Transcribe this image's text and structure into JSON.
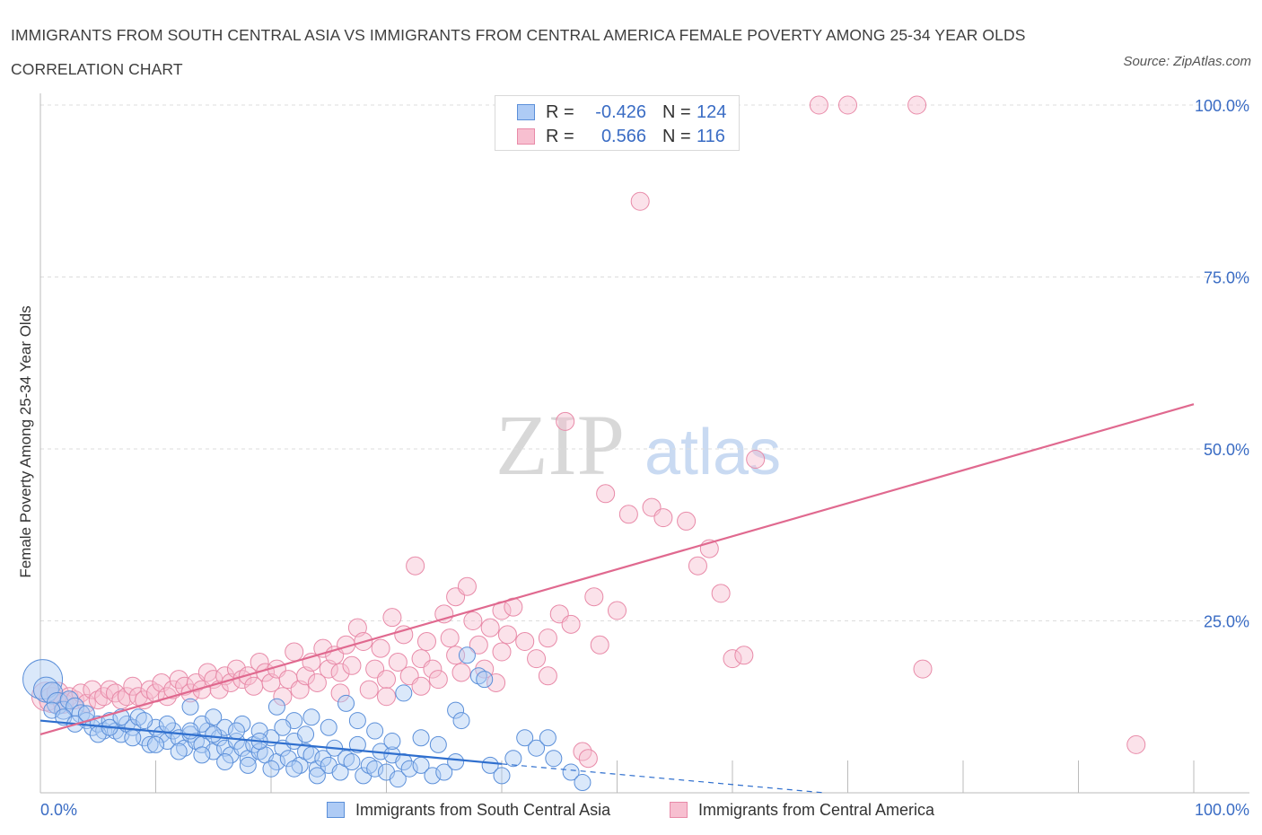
{
  "title": "IMMIGRANTS FROM SOUTH CENTRAL ASIA VS IMMIGRANTS FROM CENTRAL AMERICA FEMALE POVERTY AMONG 25-34 YEAR OLDS CORRELATION CHART",
  "source": "Source: ZipAtlas.com",
  "watermark": {
    "zip": "ZIP",
    "atlas": "atlas"
  },
  "legend": {
    "r_label": "R =",
    "n_label": "N =",
    "series1": {
      "r": "-0.426",
      "n": "124"
    },
    "series2": {
      "r": "0.566",
      "n": "116"
    }
  },
  "colors": {
    "blue_fill": "#aecbf5",
    "blue_stroke": "#5b8fd9",
    "blue_line": "#2f6fce",
    "pink_fill": "#f7bfd0",
    "pink_stroke": "#e88aa8",
    "pink_line": "#e0698f",
    "axis_label": "#3a6cc4",
    "grid": "#dddddd"
  },
  "chart_data": {
    "type": "scatter",
    "title": "IMMIGRANTS FROM SOUTH CENTRAL ASIA VS IMMIGRANTS FROM CENTRAL AMERICA FEMALE POVERTY AMONG 25-34 YEAR OLDS CORRELATION CHART",
    "xlabel": "",
    "ylabel": "Female Poverty Among 25-34 Year Olds",
    "xlim": [
      0,
      100
    ],
    "ylim": [
      0,
      100
    ],
    "x_tick_labels": [
      "0.0%",
      "100.0%"
    ],
    "y_tick_labels": [
      "25.0%",
      "50.0%",
      "75.0%",
      "100.0%"
    ],
    "y_ticks": [
      25,
      50,
      75,
      100
    ],
    "grid": true,
    "legend_position": "top-center",
    "series": [
      {
        "name": "Immigrants from South Central Asia",
        "color": "#5b8fd9",
        "r": -0.426,
        "n": 124,
        "trend": {
          "x0": 0,
          "y0": 10.5,
          "x1": 40,
          "y1": 4.2,
          "dashed_to_x": 68,
          "dashed_to_y": 0
        },
        "points": [
          [
            0.2,
            16.5,
            22
          ],
          [
            0.5,
            15.0,
            14
          ],
          [
            1.0,
            14.5,
            12
          ],
          [
            1.5,
            13.0,
            12
          ],
          [
            2.0,
            12.0,
            10
          ],
          [
            2.5,
            13.5,
            10
          ],
          [
            3.0,
            12.5,
            10
          ],
          [
            3.5,
            11.5,
            10
          ],
          [
            4.0,
            10.5,
            9
          ],
          [
            4.5,
            9.5,
            9
          ],
          [
            5.0,
            10.0,
            9
          ],
          [
            5.5,
            9.0,
            9
          ],
          [
            6.0,
            10.5,
            9
          ],
          [
            6.5,
            9.0,
            9
          ],
          [
            7.0,
            8.5,
            9
          ],
          [
            7.5,
            10.0,
            9
          ],
          [
            8.0,
            9.5,
            9
          ],
          [
            8.5,
            11.0,
            9
          ],
          [
            9.0,
            8.0,
            9
          ],
          [
            9.5,
            7.0,
            9
          ],
          [
            10.0,
            9.5,
            9
          ],
          [
            10.5,
            8.5,
            9
          ],
          [
            11.0,
            7.5,
            9
          ],
          [
            11.5,
            9.0,
            9
          ],
          [
            12.0,
            8.0,
            9
          ],
          [
            12.5,
            6.5,
            9
          ],
          [
            13.0,
            8.5,
            9
          ],
          [
            13.5,
            7.5,
            9
          ],
          [
            14.0,
            7.0,
            9
          ],
          [
            14.5,
            9.0,
            9
          ],
          [
            15.0,
            6.0,
            9
          ],
          [
            15.5,
            8.0,
            9
          ],
          [
            16.0,
            6.5,
            9
          ],
          [
            16.5,
            5.5,
            9
          ],
          [
            17.0,
            7.5,
            9
          ],
          [
            17.5,
            6.5,
            9
          ],
          [
            18.0,
            5.0,
            9
          ],
          [
            18.5,
            7.0,
            9
          ],
          [
            19.0,
            6.0,
            9
          ],
          [
            19.5,
            5.5,
            9
          ],
          [
            20.0,
            8.0,
            9
          ],
          [
            20.5,
            4.5,
            9
          ],
          [
            21.0,
            6.5,
            9
          ],
          [
            21.5,
            5.0,
            9
          ],
          [
            22.0,
            7.5,
            9
          ],
          [
            22.5,
            4.0,
            9
          ],
          [
            23.0,
            6.0,
            9
          ],
          [
            23.5,
            5.5,
            9
          ],
          [
            24.0,
            3.5,
            9
          ],
          [
            24.5,
            5.0,
            9
          ],
          [
            25.0,
            4.0,
            9
          ],
          [
            25.5,
            6.5,
            9
          ],
          [
            26.0,
            3.0,
            9
          ],
          [
            26.5,
            5.0,
            9
          ],
          [
            27.0,
            4.5,
            9
          ],
          [
            27.5,
            7.0,
            9
          ],
          [
            28.0,
            2.5,
            9
          ],
          [
            28.5,
            4.0,
            9
          ],
          [
            29.0,
            3.5,
            9
          ],
          [
            29.5,
            6.0,
            9
          ],
          [
            30.0,
            3.0,
            9
          ],
          [
            30.5,
            5.5,
            9
          ],
          [
            31.0,
            2.0,
            9
          ],
          [
            31.5,
            4.5,
            9
          ],
          [
            32.0,
            3.5,
            9
          ],
          [
            33.0,
            4.0,
            9
          ],
          [
            34.0,
            2.5,
            9
          ],
          [
            35.0,
            3.0,
            9
          ],
          [
            36.0,
            12.0,
            9
          ],
          [
            36.5,
            10.5,
            9
          ],
          [
            37.0,
            20.0,
            9
          ],
          [
            38.0,
            17.0,
            9
          ],
          [
            39.0,
            4.0,
            9
          ],
          [
            40.0,
            2.5,
            9
          ],
          [
            42.0,
            8.0,
            9
          ],
          [
            43.0,
            6.5,
            9
          ],
          [
            44.0,
            8.0,
            9
          ],
          [
            46.0,
            3.0,
            9
          ],
          [
            47.0,
            1.5,
            9
          ],
          [
            38.5,
            16.5,
            9
          ],
          [
            13.0,
            12.5,
            9
          ],
          [
            14.0,
            10.0,
            9
          ],
          [
            15.0,
            11.0,
            9
          ],
          [
            16.0,
            9.5,
            9
          ],
          [
            17.5,
            10.0,
            9
          ],
          [
            19.0,
            9.0,
            9
          ],
          [
            20.5,
            12.5,
            9
          ],
          [
            22.0,
            10.5,
            9
          ],
          [
            23.5,
            11.0,
            9
          ],
          [
            25.0,
            9.5,
            9
          ],
          [
            26.5,
            13.0,
            9
          ],
          [
            27.5,
            10.5,
            9
          ],
          [
            29.0,
            9.0,
            9
          ],
          [
            30.5,
            7.5,
            9
          ],
          [
            31.5,
            14.5,
            9
          ],
          [
            33.0,
            8.0,
            9
          ],
          [
            34.5,
            7.0,
            9
          ],
          [
            36.0,
            4.5,
            9
          ],
          [
            41.0,
            5.0,
            9
          ],
          [
            44.5,
            5.0,
            9
          ],
          [
            1.0,
            12.0,
            9
          ],
          [
            2.0,
            11.0,
            9
          ],
          [
            3.0,
            10.0,
            9
          ],
          [
            4.0,
            11.5,
            9
          ],
          [
            5.0,
            8.5,
            9
          ],
          [
            6.0,
            9.5,
            9
          ],
          [
            7.0,
            11.0,
            9
          ],
          [
            8.0,
            8.0,
            9
          ],
          [
            9.0,
            10.5,
            9
          ],
          [
            10.0,
            7.0,
            9
          ],
          [
            11.0,
            10.0,
            9
          ],
          [
            12.0,
            6.0,
            9
          ],
          [
            13.0,
            9.0,
            9
          ],
          [
            14.0,
            5.5,
            9
          ],
          [
            15.0,
            8.5,
            9
          ],
          [
            16.0,
            4.5,
            9
          ],
          [
            17.0,
            9.0,
            9
          ],
          [
            18.0,
            4.0,
            9
          ],
          [
            19.0,
            7.5,
            9
          ],
          [
            20.0,
            3.5,
            9
          ],
          [
            21.0,
            9.5,
            9
          ],
          [
            22.0,
            3.5,
            9
          ],
          [
            23.0,
            8.5,
            9
          ],
          [
            24.0,
            2.5,
            9
          ]
        ]
      },
      {
        "name": "Immigrants from Central America",
        "color": "#e88aa8",
        "r": 0.566,
        "n": 116,
        "trend": {
          "x0": 0,
          "y0": 8.5,
          "x1": 100,
          "y1": 56.5
        },
        "points": [
          [
            0.5,
            14.0,
            16
          ],
          [
            1.0,
            13.5,
            14
          ],
          [
            1.5,
            14.5,
            12
          ],
          [
            2.0,
            13.0,
            11
          ],
          [
            2.5,
            14.0,
            10
          ],
          [
            3.0,
            13.5,
            10
          ],
          [
            3.5,
            14.5,
            10
          ],
          [
            4.0,
            13.0,
            10
          ],
          [
            4.5,
            15.0,
            10
          ],
          [
            5.0,
            13.5,
            10
          ],
          [
            5.5,
            14.0,
            10
          ],
          [
            6.0,
            15.0,
            10
          ],
          [
            6.5,
            14.5,
            10
          ],
          [
            7.0,
            13.5,
            10
          ],
          [
            7.5,
            14.0,
            10
          ],
          [
            8.0,
            15.5,
            10
          ],
          [
            8.5,
            14.0,
            10
          ],
          [
            9.0,
            13.5,
            10
          ],
          [
            9.5,
            15.0,
            10
          ],
          [
            10.0,
            14.5,
            10
          ],
          [
            10.5,
            16.0,
            10
          ],
          [
            11.0,
            14.0,
            10
          ],
          [
            11.5,
            15.0,
            10
          ],
          [
            12.0,
            16.5,
            10
          ],
          [
            12.5,
            15.5,
            10
          ],
          [
            13.0,
            14.5,
            10
          ],
          [
            13.5,
            16.0,
            10
          ],
          [
            14.0,
            15.0,
            10
          ],
          [
            14.5,
            17.5,
            10
          ],
          [
            15.0,
            16.5,
            10
          ],
          [
            15.5,
            15.0,
            10
          ],
          [
            16.0,
            17.0,
            10
          ],
          [
            16.5,
            16.0,
            10
          ],
          [
            17.0,
            18.0,
            10
          ],
          [
            17.5,
            16.5,
            10
          ],
          [
            18.0,
            17.0,
            10
          ],
          [
            18.5,
            15.5,
            10
          ],
          [
            19.0,
            19.0,
            10
          ],
          [
            19.5,
            17.5,
            10
          ],
          [
            20.0,
            16.0,
            10
          ],
          [
            20.5,
            18.0,
            10
          ],
          [
            21.0,
            14.0,
            10
          ],
          [
            21.5,
            16.5,
            10
          ],
          [
            22.0,
            20.5,
            10
          ],
          [
            22.5,
            15.0,
            10
          ],
          [
            23.0,
            17.0,
            10
          ],
          [
            23.5,
            19.0,
            10
          ],
          [
            24.0,
            16.0,
            10
          ],
          [
            24.5,
            21.0,
            10
          ],
          [
            25.0,
            18.0,
            10
          ],
          [
            25.5,
            20.0,
            10
          ],
          [
            26.0,
            17.5,
            10
          ],
          [
            26.5,
            21.5,
            10
          ],
          [
            27.0,
            18.5,
            10
          ],
          [
            27.5,
            24.0,
            10
          ],
          [
            28.0,
            22.0,
            10
          ],
          [
            28.5,
            15.0,
            10
          ],
          [
            29.0,
            18.0,
            10
          ],
          [
            29.5,
            21.0,
            10
          ],
          [
            30.0,
            16.5,
            10
          ],
          [
            30.5,
            25.5,
            10
          ],
          [
            31.0,
            19.0,
            10
          ],
          [
            31.5,
            23.0,
            10
          ],
          [
            32.0,
            17.0,
            10
          ],
          [
            32.5,
            33.0,
            10
          ],
          [
            33.0,
            19.5,
            10
          ],
          [
            33.5,
            22.0,
            10
          ],
          [
            34.0,
            18.0,
            10
          ],
          [
            34.5,
            16.5,
            10
          ],
          [
            35.0,
            26.0,
            10
          ],
          [
            35.5,
            22.5,
            10
          ],
          [
            36.0,
            28.5,
            10
          ],
          [
            36.5,
            17.5,
            10
          ],
          [
            37.0,
            30.0,
            10
          ],
          [
            37.5,
            25.0,
            10
          ],
          [
            38.0,
            21.5,
            10
          ],
          [
            38.5,
            18.0,
            10
          ],
          [
            39.0,
            24.0,
            10
          ],
          [
            39.5,
            16.0,
            10
          ],
          [
            40.0,
            26.5,
            10
          ],
          [
            40.5,
            23.0,
            10
          ],
          [
            41.0,
            27.0,
            10
          ],
          [
            42.0,
            22.0,
            10
          ],
          [
            43.0,
            19.5,
            10
          ],
          [
            44.0,
            17.0,
            10
          ],
          [
            45.0,
            26.0,
            10
          ],
          [
            46.0,
            24.5,
            10
          ],
          [
            47.0,
            6.0,
            10
          ],
          [
            47.5,
            5.0,
            10
          ],
          [
            48.0,
            28.5,
            10
          ],
          [
            48.5,
            21.5,
            10
          ],
          [
            49.0,
            43.5,
            10
          ],
          [
            50.0,
            26.5,
            10
          ],
          [
            51.0,
            40.5,
            10
          ],
          [
            53.0,
            41.5,
            10
          ],
          [
            54.0,
            40.0,
            10
          ],
          [
            56.0,
            39.5,
            10
          ],
          [
            57.0,
            33.0,
            10
          ],
          [
            58.0,
            35.5,
            10
          ],
          [
            59.0,
            29.0,
            10
          ],
          [
            60.0,
            19.5,
            10
          ],
          [
            61.0,
            20.0,
            10
          ],
          [
            62.0,
            48.5,
            10
          ],
          [
            45.5,
            54.0,
            10
          ],
          [
            52.0,
            86.0,
            10
          ],
          [
            67.5,
            100.0,
            10
          ],
          [
            70.0,
            100.0,
            10
          ],
          [
            76.0,
            100.0,
            10
          ],
          [
            95.0,
            7.0,
            10
          ],
          [
            76.5,
            18.0,
            10
          ],
          [
            26.0,
            14.5,
            10
          ],
          [
            30.0,
            14.0,
            10
          ],
          [
            33.0,
            15.5,
            10
          ],
          [
            36.0,
            20.0,
            10
          ],
          [
            40.0,
            20.5,
            10
          ],
          [
            44.0,
            22.5,
            10
          ]
        ]
      }
    ]
  }
}
